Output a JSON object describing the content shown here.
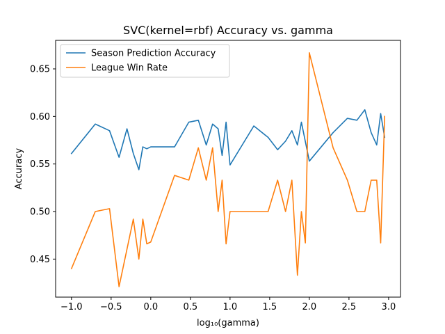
{
  "chart_data": {
    "type": "line",
    "title": "SVC(kernel=rbf) Accuracy vs. gamma",
    "xlabel": "log₁₀(gamma)",
    "ylabel": "Accuracy",
    "xlim": [
      -1.2,
      3.15
    ],
    "ylim": [
      0.41,
      0.68
    ],
    "xticks": [
      -1.0,
      -0.5,
      0.0,
      0.5,
      1.0,
      1.5,
      2.0,
      2.5,
      3.0
    ],
    "xtick_labels": [
      "−1.0",
      "−0.5",
      "0.0",
      "0.5",
      "1.0",
      "1.5",
      "2.0",
      "2.5",
      "3.0"
    ],
    "yticks": [
      0.45,
      0.5,
      0.55,
      0.6,
      0.65
    ],
    "ytick_labels": [
      "0.45",
      "0.50",
      "0.55",
      "0.60",
      "0.65"
    ],
    "grid": false,
    "legend_position": "top-left",
    "series": [
      {
        "name": "Season Prediction Accuracy",
        "color": "#1f77b4",
        "x": [
          -1.0,
          -0.7,
          -0.52,
          -0.4,
          -0.3,
          -0.22,
          -0.15,
          -0.1,
          -0.05,
          0.0,
          0.3,
          0.48,
          0.6,
          0.7,
          0.78,
          0.85,
          0.9,
          0.95,
          1.0,
          1.3,
          1.48,
          1.6,
          1.7,
          1.78,
          1.85,
          1.9,
          2.0,
          2.3,
          2.48,
          2.6,
          2.7,
          2.78,
          2.85,
          2.9,
          2.95
        ],
        "y": [
          0.561,
          0.592,
          0.585,
          0.557,
          0.587,
          0.561,
          0.544,
          0.568,
          0.566,
          0.568,
          0.568,
          0.594,
          0.596,
          0.57,
          0.592,
          0.587,
          0.559,
          0.594,
          0.549,
          0.59,
          0.578,
          0.565,
          0.574,
          0.585,
          0.57,
          0.594,
          0.553,
          0.583,
          0.598,
          0.596,
          0.607,
          0.583,
          0.57,
          0.603,
          0.578
        ]
      },
      {
        "name": "League Win Rate",
        "color": "#ff7f0e",
        "x": [
          -1.0,
          -0.7,
          -0.52,
          -0.4,
          -0.22,
          -0.15,
          -0.1,
          -0.05,
          0.0,
          0.3,
          0.48,
          0.6,
          0.7,
          0.78,
          0.85,
          0.9,
          0.95,
          1.0,
          1.3,
          1.48,
          1.6,
          1.7,
          1.78,
          1.85,
          1.9,
          1.95,
          2.0,
          2.3,
          2.48,
          2.6,
          2.7,
          2.78,
          2.85,
          2.9,
          2.95
        ],
        "y": [
          0.44,
          0.5,
          0.503,
          0.421,
          0.492,
          0.45,
          0.492,
          0.466,
          0.468,
          0.538,
          0.533,
          0.567,
          0.533,
          0.567,
          0.5,
          0.533,
          0.466,
          0.5,
          0.5,
          0.5,
          0.533,
          0.5,
          0.533,
          0.433,
          0.5,
          0.467,
          0.667,
          0.567,
          0.533,
          0.5,
          0.5,
          0.533,
          0.533,
          0.467,
          0.6
        ]
      }
    ]
  }
}
